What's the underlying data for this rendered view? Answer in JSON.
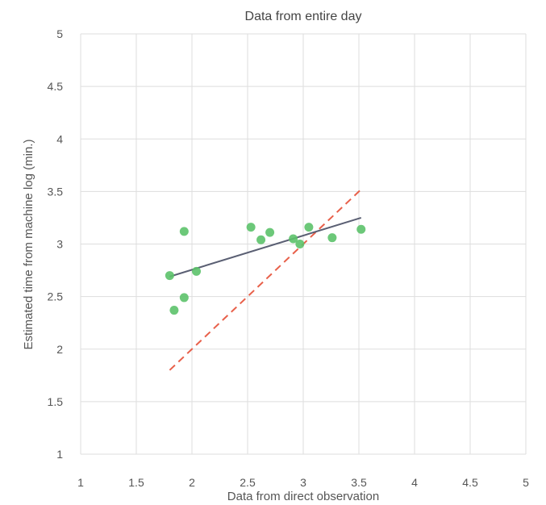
{
  "chart_data": {
    "type": "scatter",
    "title": "Data from entire day",
    "xlabel": "Data from direct observation",
    "ylabel": "Estimated time from machine log (min.)",
    "xlim": [
      1,
      5
    ],
    "ylim": [
      1,
      5
    ],
    "xticks": [
      1,
      1.5,
      2,
      2.5,
      3,
      3.5,
      4,
      4.5,
      5
    ],
    "yticks": [
      1,
      1.5,
      2,
      2.5,
      3,
      3.5,
      4,
      4.5,
      5
    ],
    "xtick_labels": [
      "1",
      "1.5",
      "2",
      "2.5",
      "3",
      "3.5",
      "4",
      "4.5",
      "5"
    ],
    "ytick_labels": [
      "1",
      "1.5",
      "2",
      "2.5",
      "3",
      "3.5",
      "4",
      "4.5",
      "5"
    ],
    "grid": true,
    "legend": "none",
    "points": [
      {
        "x": 1.8,
        "y": 2.7
      },
      {
        "x": 1.84,
        "y": 2.37
      },
      {
        "x": 1.93,
        "y": 3.12
      },
      {
        "x": 1.93,
        "y": 2.49
      },
      {
        "x": 2.04,
        "y": 2.74
      },
      {
        "x": 2.53,
        "y": 3.16
      },
      {
        "x": 2.62,
        "y": 3.04
      },
      {
        "x": 2.7,
        "y": 3.11
      },
      {
        "x": 2.91,
        "y": 3.05
      },
      {
        "x": 2.97,
        "y": 3.0
      },
      {
        "x": 3.05,
        "y": 3.16
      },
      {
        "x": 3.26,
        "y": 3.06
      },
      {
        "x": 3.52,
        "y": 3.14
      }
    ],
    "fit_line": {
      "x": [
        1.8,
        3.52
      ],
      "y": [
        2.69,
        3.25
      ]
    },
    "identity_line": {
      "x": [
        1.8,
        3.52
      ],
      "y": [
        1.8,
        3.52
      ]
    },
    "colors": {
      "points": "#5cc26a",
      "fit_line": "#5a5f73",
      "identity_line": "#e8604a",
      "grid": "#dddddd"
    }
  }
}
